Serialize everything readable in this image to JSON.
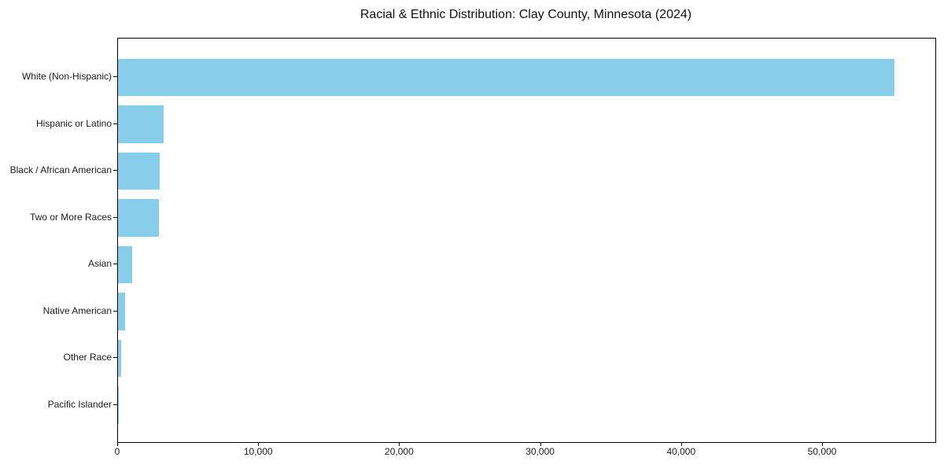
{
  "chart_data": {
    "type": "bar",
    "orientation": "horizontal",
    "title": "Racial & Ethnic Distribution: Clay County, Minnesota (2024)",
    "categories": [
      "White (Non-Hispanic)",
      "Hispanic or Latino",
      "Black / African American",
      "Two or More Races",
      "Asian",
      "Native American",
      "Other Race",
      "Pacific Islander"
    ],
    "values": [
      55100,
      3250,
      2950,
      2900,
      990,
      520,
      220,
      30
    ],
    "xlabel": "",
    "ylabel": "",
    "xlim": [
      0,
      57980
    ],
    "x_ticks": [
      0,
      10000,
      20000,
      30000,
      40000,
      50000
    ],
    "x_tick_labels": [
      "0",
      "10,000",
      "20,000",
      "30,000",
      "40,000",
      "50,000"
    ],
    "bar_color": "#87CEEB",
    "grid": false,
    "legend": null,
    "background_color": "#ffffff",
    "spine_color": "#000000"
  }
}
